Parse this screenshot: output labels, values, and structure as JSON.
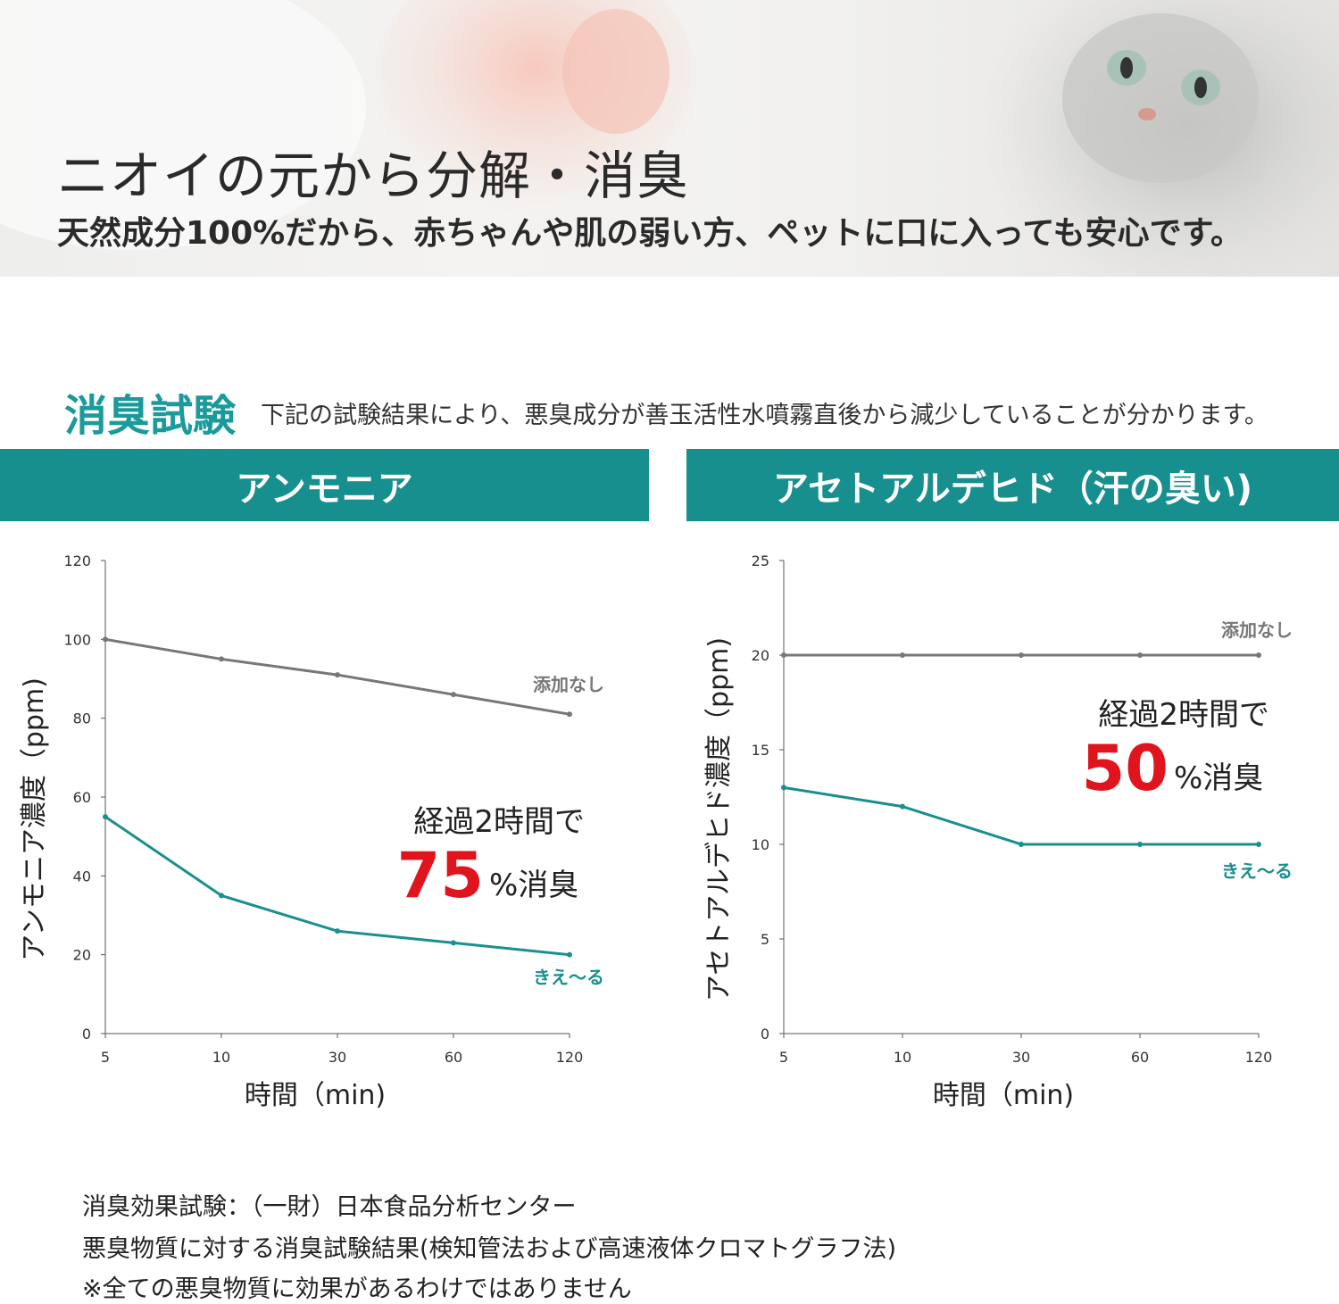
{
  "hero": {
    "title": "ニオイの元から分解・消臭",
    "subtitle": "天然成分100%だから、赤ちゃんや肌の弱い方、ペットに口に入っても安心です。"
  },
  "section": {
    "title": "消臭試験",
    "description": "下記の試験結果により、悪臭成分が善玉活性水噴霧直後から減少していることが分かります。"
  },
  "colors": {
    "accent": "#178f8f",
    "untreated_line": "#777777",
    "treated_line": "#1a8f8f",
    "highlight_number": "#e0141c"
  },
  "chart_data": [
    {
      "type": "line",
      "header": "アンモニア",
      "x": [
        "5",
        "10",
        "30",
        "60",
        "120"
      ],
      "xlabel": "時間（min)",
      "ylabel": "アンモニア濃度（ppm)",
      "ylim": [
        0,
        120
      ],
      "yticks": [
        "0",
        "20",
        "40",
        "60",
        "80",
        "100",
        "120"
      ],
      "series": [
        {
          "name": "添加なし",
          "values": [
            100,
            95,
            91,
            86,
            81
          ]
        },
        {
          "name": "きえ〜る",
          "values": [
            55,
            35,
            26,
            23,
            20
          ]
        }
      ],
      "annotation": {
        "line1": "経過2時間で",
        "number": "75",
        "suffix": "%消臭"
      }
    },
    {
      "type": "line",
      "header": "アセトアルデヒド（汗の臭い)",
      "x": [
        "5",
        "10",
        "30",
        "60",
        "120"
      ],
      "xlabel": "時間（min)",
      "ylabel": "アセトアルデヒド濃度（ppm)",
      "ylim": [
        0,
        25
      ],
      "yticks": [
        "0",
        "5",
        "10",
        "15",
        "20",
        "25"
      ],
      "series": [
        {
          "name": "添加なし",
          "values": [
            20,
            20,
            20,
            20,
            20
          ]
        },
        {
          "name": "きえ〜る",
          "values": [
            13,
            12,
            10,
            10,
            10
          ]
        }
      ],
      "annotation": {
        "line1": "経過2時間で",
        "number": "50",
        "suffix": "%消臭"
      }
    }
  ],
  "footnotes": [
    "消臭効果試験：（一財）日本食品分析センター",
    "悪臭物質に対する消臭試験結果(検知管法および高速液体クロマトグラフ法)",
    "※全ての悪臭物質に効果があるわけではありません"
  ]
}
